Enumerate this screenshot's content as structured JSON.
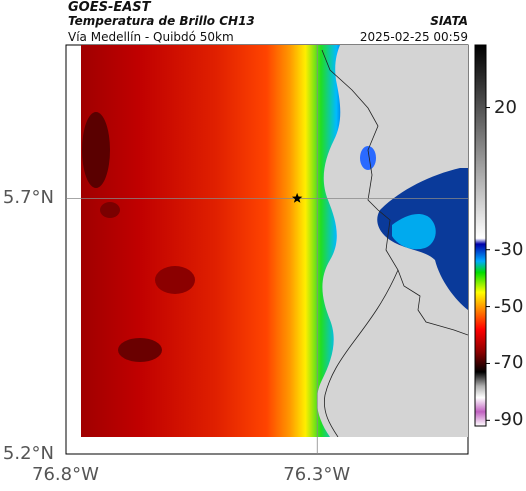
{
  "header": {
    "satellite": "GOES-EAST",
    "product": "Temperatura de Brillo CH13",
    "region": "Vía Medellín - Quibdó 50km",
    "organization": "SIATA",
    "datetime": "2025-02-25 00:59"
  },
  "map": {
    "extent": {
      "lon_min": -76.8,
      "lon_max": -76.0,
      "lat_min": 5.2,
      "lat_max": 6.0
    },
    "lat_ticks": [
      {
        "value": 5.7,
        "label": "5.7°N"
      },
      {
        "value": 5.2,
        "label": "5.2°N"
      }
    ],
    "lon_ticks": [
      {
        "value": -76.8,
        "label": "76.8°W"
      },
      {
        "value": -76.3,
        "label": "76.3°W"
      }
    ],
    "gridlines": [
      {
        "type": "lat",
        "value": 5.7
      },
      {
        "type": "lon",
        "value": -76.3
      }
    ],
    "marker": {
      "type": "star",
      "lon": -76.34,
      "lat": 5.7
    }
  },
  "colorbar": {
    "vmin": -92,
    "vmax": 42,
    "ticks": [
      {
        "value": 20,
        "label": "20"
      },
      {
        "value": -30,
        "label": "-30"
      },
      {
        "value": -50,
        "label": "-50"
      },
      {
        "value": -70,
        "label": "-70"
      },
      {
        "value": -90,
        "label": "-90"
      }
    ],
    "stops": [
      {
        "t": -92,
        "color": "#ffffff"
      },
      {
        "t": -87,
        "color": "#c060c0"
      },
      {
        "t": -82,
        "color": "#ffffff"
      },
      {
        "t": -78,
        "color": "#b0b0b0"
      },
      {
        "t": -73,
        "color": "#000000"
      },
      {
        "t": -66,
        "color": "#8b0000"
      },
      {
        "t": -58,
        "color": "#ff0000"
      },
      {
        "t": -51,
        "color": "#ff8800"
      },
      {
        "t": -45,
        "color": "#ffff00"
      },
      {
        "t": -38,
        "color": "#00dd00"
      },
      {
        "t": -34,
        "color": "#00aaff"
      },
      {
        "t": -28,
        "color": "#0000aa"
      },
      {
        "t": -26,
        "color": "#ffffff"
      },
      {
        "t": 42,
        "color": "#000000"
      }
    ]
  }
}
